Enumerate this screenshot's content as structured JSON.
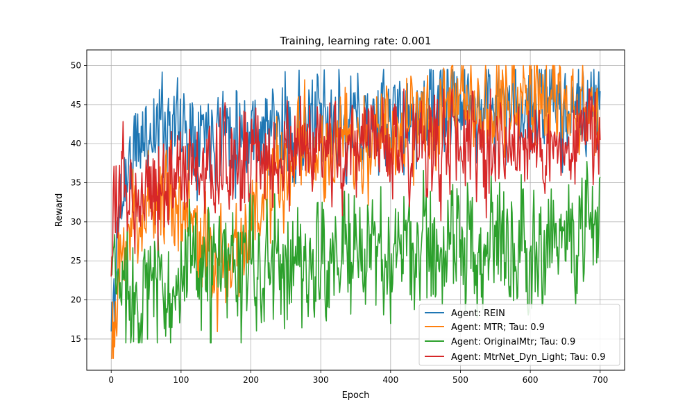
{
  "chart_data": {
    "type": "line",
    "title": "Training, learning rate: 0.001",
    "xlabel": "Epoch",
    "ylabel": "Reward",
    "xlim": [
      -35,
      735
    ],
    "ylim": [
      11,
      52
    ],
    "xticks": [
      0,
      100,
      200,
      300,
      400,
      500,
      600,
      700
    ],
    "yticks": [
      15,
      20,
      25,
      30,
      35,
      40,
      45,
      50
    ],
    "grid": true,
    "legend_position": "lower-right",
    "series": [
      {
        "name": "Agent: REIN",
        "color": "#1f77b4",
        "anchors": [
          [
            0,
            15
          ],
          [
            5,
            22
          ],
          [
            10,
            30
          ],
          [
            20,
            36
          ],
          [
            40,
            40
          ],
          [
            60,
            42
          ],
          [
            80,
            43
          ],
          [
            100,
            42
          ],
          [
            150,
            42.5
          ],
          [
            200,
            42
          ],
          [
            250,
            41.5
          ],
          [
            300,
            42
          ],
          [
            350,
            42.5
          ],
          [
            400,
            43
          ],
          [
            450,
            44
          ],
          [
            500,
            45
          ],
          [
            550,
            45
          ],
          [
            600,
            45
          ],
          [
            650,
            45
          ],
          [
            700,
            44
          ]
        ],
        "amplitude": 3.2,
        "ymin": 12,
        "ymax": 49.5,
        "seed": 11
      },
      {
        "name": "Agent: MTR; Tau: 0.9",
        "color": "#ff7f0e",
        "anchors": [
          [
            0,
            15
          ],
          [
            5,
            15
          ],
          [
            10,
            20
          ],
          [
            20,
            28
          ],
          [
            30,
            30
          ],
          [
            50,
            32
          ],
          [
            70,
            34
          ],
          [
            90,
            33
          ],
          [
            110,
            32
          ],
          [
            130,
            26
          ],
          [
            150,
            24
          ],
          [
            170,
            26
          ],
          [
            190,
            28
          ],
          [
            210,
            32
          ],
          [
            230,
            33
          ],
          [
            250,
            36
          ],
          [
            270,
            39
          ],
          [
            300,
            39
          ],
          [
            350,
            39
          ],
          [
            400,
            41
          ],
          [
            420,
            43
          ],
          [
            450,
            44
          ],
          [
            500,
            46
          ],
          [
            550,
            46
          ],
          [
            600,
            46
          ],
          [
            650,
            46
          ],
          [
            700,
            44
          ]
        ],
        "amplitude": 3.4,
        "ymin": 12.5,
        "ymax": 50,
        "seed": 23
      },
      {
        "name": "Agent: OriginalMtr; Tau: 0.9",
        "color": "#2ca02c",
        "anchors": [
          [
            0,
            23
          ],
          [
            10,
            22
          ],
          [
            50,
            21
          ],
          [
            100,
            22.5
          ],
          [
            150,
            23.5
          ],
          [
            200,
            24
          ],
          [
            250,
            24.5
          ],
          [
            300,
            25
          ],
          [
            350,
            25.5
          ],
          [
            400,
            26
          ],
          [
            450,
            26.5
          ],
          [
            500,
            27
          ],
          [
            550,
            27.5
          ],
          [
            600,
            28
          ],
          [
            650,
            28
          ],
          [
            700,
            29
          ]
        ],
        "amplitude": 4.2,
        "ymin": 14.5,
        "ymax": 38,
        "seed": 37
      },
      {
        "name": "Agent: MtrNet_Dyn_Light; Tau: 0.9",
        "color": "#d62728",
        "anchors": [
          [
            0,
            24
          ],
          [
            5,
            30
          ],
          [
            15,
            35
          ],
          [
            30,
            34
          ],
          [
            60,
            35
          ],
          [
            100,
            36
          ],
          [
            150,
            37
          ],
          [
            200,
            38
          ],
          [
            250,
            38.5
          ],
          [
            300,
            39
          ],
          [
            350,
            39
          ],
          [
            400,
            40
          ],
          [
            450,
            40
          ],
          [
            500,
            40
          ],
          [
            550,
            40
          ],
          [
            600,
            40
          ],
          [
            650,
            40
          ],
          [
            700,
            42
          ]
        ],
        "amplitude": 3.2,
        "ymin": 23,
        "ymax": 47,
        "seed": 53
      }
    ]
  }
}
